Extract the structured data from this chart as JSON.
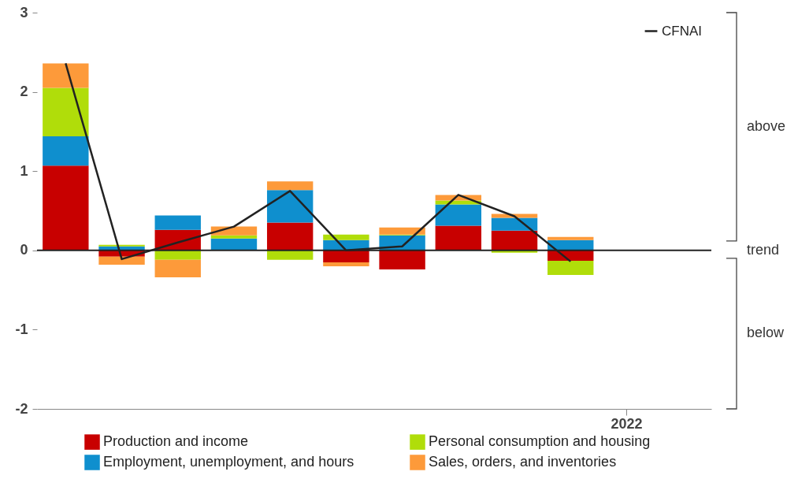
{
  "chart_data": {
    "type": "bar",
    "stacked": true,
    "categories": [
      null,
      null,
      null,
      null,
      null,
      null,
      null,
      null,
      null,
      null,
      "2022",
      null
    ],
    "series": [
      {
        "name": "Production and income",
        "color": "#c80000",
        "values": [
          1.07,
          -0.08,
          0.26,
          0,
          0.35,
          -0.15,
          -0.24,
          0.31,
          0.25,
          -0.13,
          null,
          null
        ]
      },
      {
        "name": "Employment, unemployment, and hours",
        "color": "#0f8fce",
        "values": [
          0.37,
          0.05,
          0.18,
          0.15,
          0.41,
          0.13,
          0.19,
          0.27,
          0.16,
          0.13,
          null,
          null
        ]
      },
      {
        "name": "Personal consumption and housing",
        "color": "#b0dd0a",
        "values": [
          0.61,
          0.02,
          -0.12,
          0.04,
          -0.12,
          0.07,
          0.01,
          0.05,
          -0.03,
          -0.18,
          null,
          null
        ]
      },
      {
        "name": "Sales, orders, and inventories",
        "color": "#fd9a3a",
        "values": [
          0.31,
          -0.1,
          -0.22,
          0.11,
          0.11,
          -0.05,
          0.09,
          0.07,
          0.05,
          0.04,
          null,
          null
        ]
      },
      {
        "name": "CFNAI",
        "type": "line",
        "color": "#222222",
        "values": [
          2.36,
          -0.11,
          0.1,
          0.3,
          0.75,
          0,
          0.05,
          0.7,
          0.43,
          -0.14,
          null,
          null
        ]
      }
    ],
    "ylim": [
      -2,
      3
    ],
    "yticks": [
      -2,
      -1,
      0,
      1,
      2,
      3
    ],
    "ref_lines": [
      {
        "axis": "y",
        "value": 0,
        "color": "#222222"
      }
    ],
    "annotations": [
      "above",
      "trend",
      "below"
    ],
    "legend": "bottom"
  }
}
